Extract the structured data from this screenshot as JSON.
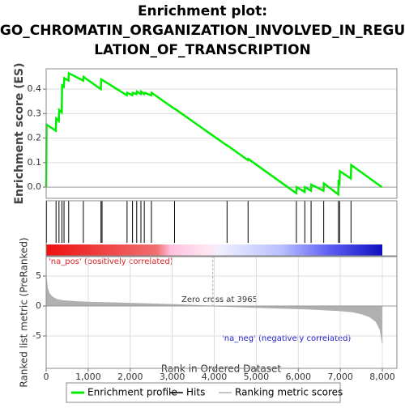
{
  "chart_data": [
    {
      "type": "line",
      "title": [
        "Enrichment plot:",
        "GO_CHROMATIN_ORGANIZATION_INVOLVED_IN_REGU",
        "LATION_OF_TRANSCRIPTION"
      ],
      "ylabel": "Enrichment score (ES)",
      "x": [
        0,
        10,
        230,
        240,
        300,
        310,
        370,
        380,
        420,
        430,
        530,
        540,
        880,
        890,
        1300,
        1310,
        1920,
        1930,
        2050,
        2060,
        2150,
        2160,
        2250,
        2260,
        2330,
        2340,
        2500,
        2510,
        3050,
        3060,
        4300,
        4310,
        4800,
        4810,
        5950,
        5960,
        6150,
        6160,
        6300,
        6310,
        6600,
        6610,
        6950,
        6960,
        6980,
        6990,
        7250,
        7260,
        7990
      ],
      "series": [
        {
          "name": "Enrichment profile",
          "color": "#00ee00",
          "values": [
            0,
            0.255,
            0.23,
            0.28,
            0.27,
            0.315,
            0.305,
            0.415,
            0.41,
            0.445,
            0.435,
            0.465,
            0.435,
            0.45,
            0.4,
            0.44,
            0.375,
            0.385,
            0.375,
            0.385,
            0.38,
            0.39,
            0.38,
            0.39,
            0.38,
            0.385,
            0.375,
            0.385,
            0.32,
            0.32,
            0.17,
            0.17,
            0.11,
            0.115,
            -0.025,
            0.0,
            -0.02,
            0.0,
            -0.015,
            0.01,
            -0.015,
            0.015,
            -0.03,
            0.02,
            0.015,
            0.065,
            0.035,
            0.09,
            0.0
          ]
        }
      ],
      "xlim": [
        0,
        8347
      ],
      "ylim": [
        -0.046,
        0.483
      ],
      "yticks": [
        {
          "value": 0,
          "label": "0.0"
        },
        0.1,
        0.2,
        0.3,
        0.4
      ],
      "grid": true
    },
    {
      "type": "rug",
      "series": [
        {
          "name": "Hits",
          "color": "#000000",
          "x": [
            10,
            235,
            305,
            375,
            425,
            535,
            885,
            1305,
            1330,
            1925,
            2055,
            2155,
            2255,
            2335,
            2505,
            3055,
            4305,
            4805,
            5955,
            6155,
            6305,
            6605,
            6955,
            6985,
            7255
          ]
        }
      ],
      "xlim": [
        0,
        8347
      ],
      "pos_label": "'na_pos' (positively correlated)",
      "neg_label": "'na_neg' (negatively correlated)"
    },
    {
      "type": "area",
      "ylabel": "Ranked list metric (PreRanked)",
      "xlabel": "Rank in Ordered Dataset",
      "x": [
        0,
        30,
        80,
        150,
        250,
        400,
        700,
        1000,
        1500,
        2000,
        2500,
        3000,
        3500,
        3965,
        4500,
        5000,
        5500,
        6000,
        6500,
        7000,
        7300,
        7500,
        7700,
        7850,
        7950,
        8000
      ],
      "series": [
        {
          "name": "Ranking metric scores",
          "color": "#b0b0b0",
          "values": [
            5,
            3,
            2,
            1.5,
            1.1,
            0.9,
            0.75,
            0.65,
            0.55,
            0.45,
            0.35,
            0.25,
            0.12,
            0,
            -0.12,
            -0.25,
            -0.35,
            -0.45,
            -0.6,
            -0.8,
            -1.0,
            -1.3,
            -1.8,
            -2.6,
            -4,
            -6.2
          ]
        }
      ],
      "zero_cross": 3965,
      "annotation": "Zero cross at 3965",
      "xlim": [
        0,
        8347
      ],
      "ylim": [
        -10.4,
        8.24
      ],
      "yticks": [
        -5,
        0,
        5
      ],
      "xticks": [
        0,
        {
          "value": 1000,
          "label": "1,000"
        },
        {
          "value": 2000,
          "label": "2,000"
        },
        {
          "value": 3000,
          "label": "3,000"
        },
        {
          "value": 4000,
          "label": "4,000"
        },
        {
          "value": 5000,
          "label": "5,000"
        },
        {
          "value": 6000,
          "label": "6,000"
        },
        {
          "value": 7000,
          "label": "7,000"
        },
        {
          "value": 8000,
          "label": "8,000"
        }
      ],
      "grid": true
    }
  ]
}
